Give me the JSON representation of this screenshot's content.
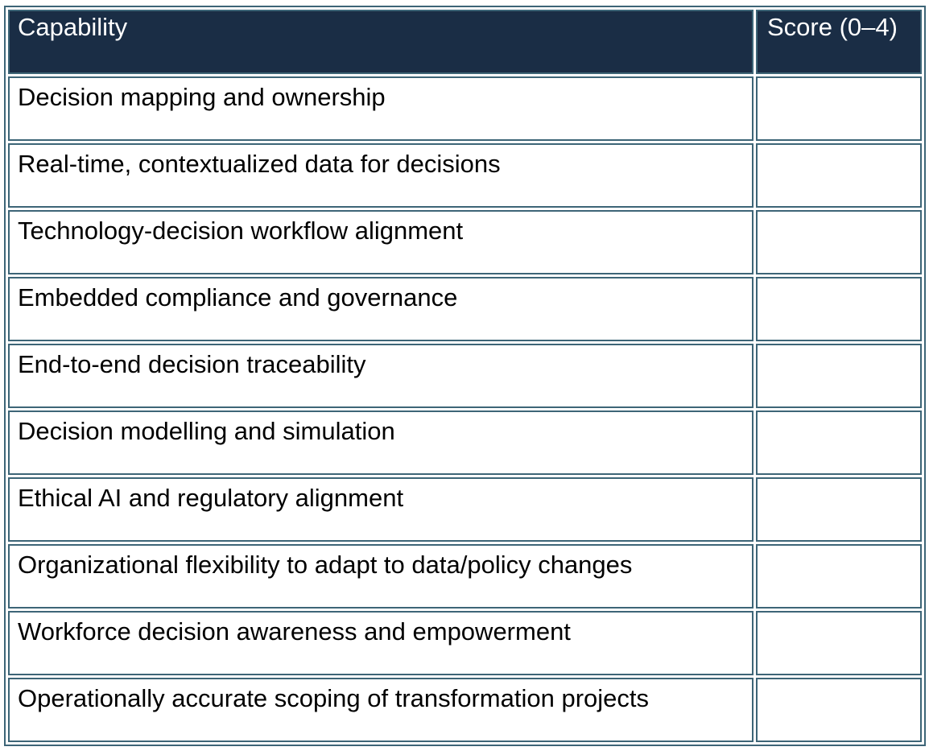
{
  "table": {
    "headers": [
      "Capability",
      "Score (0–4)"
    ],
    "rows": [
      {
        "capability": "Decision mapping and ownership",
        "score": ""
      },
      {
        "capability": "Real-time, contextualized data for decisions",
        "score": ""
      },
      {
        "capability": "Technology-decision workflow alignment",
        "score": ""
      },
      {
        "capability": "Embedded compliance and governance",
        "score": ""
      },
      {
        "capability": "End-to-end decision traceability",
        "score": ""
      },
      {
        "capability": "Decision modelling and simulation",
        "score": ""
      },
      {
        "capability": "Ethical AI and regulatory alignment",
        "score": ""
      },
      {
        "capability": "Organizational flexibility to adapt to data/policy changes",
        "score": ""
      },
      {
        "capability": "Workforce decision awareness and empowerment",
        "score": ""
      },
      {
        "capability": "Operationally accurate scoping of transformation projects",
        "score": ""
      }
    ]
  },
  "colors": {
    "header_bg": "#1a2d45",
    "border": "#3d6577"
  }
}
